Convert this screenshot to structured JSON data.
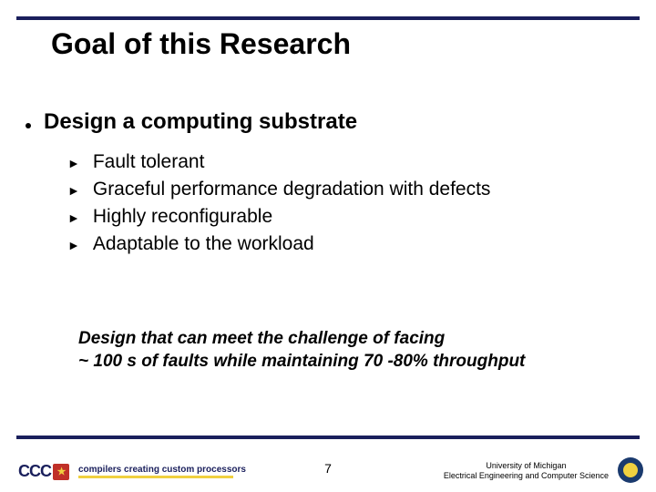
{
  "colors": {
    "rule": "#1a1f5c",
    "accent_yellow": "#f0d040",
    "accent_red": "#c03028",
    "seal_blue": "#1a3a6e",
    "text": "#000000",
    "background": "#ffffff"
  },
  "title": "Goal of this Research",
  "main_bullet": "Design a computing substrate",
  "sub_bullets": [
    "Fault tolerant",
    "Graceful performance degradation with defects",
    "Highly reconfigurable",
    "Adaptable to the workload"
  ],
  "callout_line1": "Design that can meet the challenge of facing",
  "callout_line2": "~ 100 s of faults while maintaining 70 -80% throughput",
  "footer": {
    "logo_text": "CCC",
    "tagline": "compilers creating custom processors",
    "page_number": "7",
    "affiliation_line1": "University of Michigan",
    "affiliation_line2": "Electrical Engineering and Computer Science"
  }
}
